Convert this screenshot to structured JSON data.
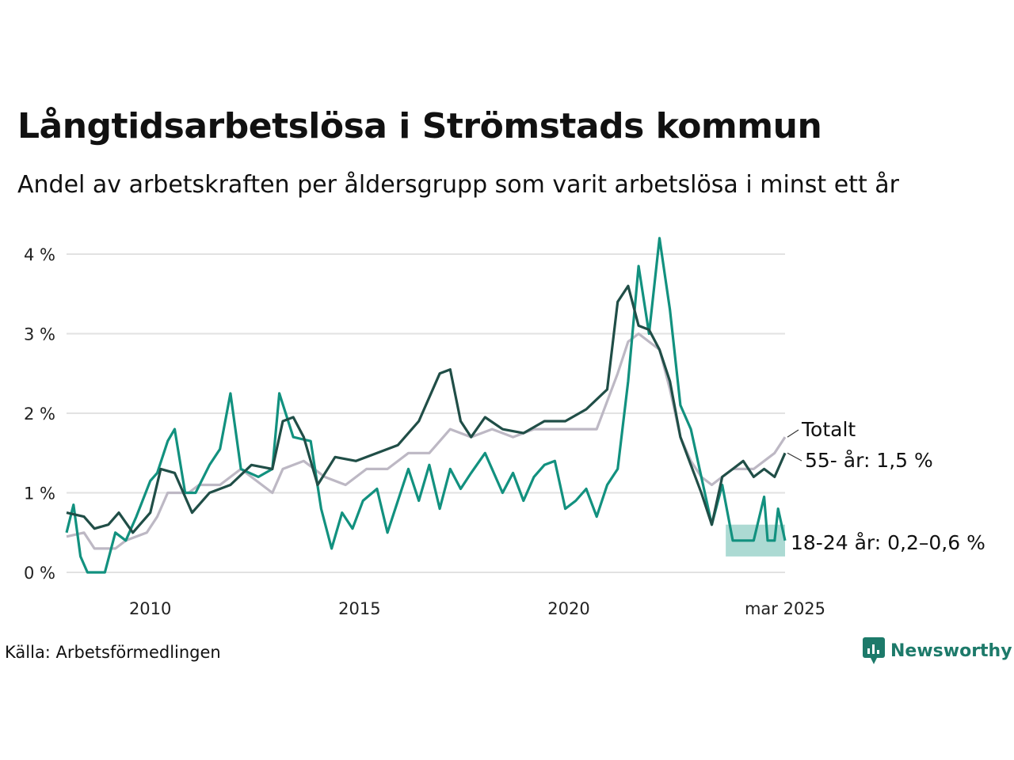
{
  "title": "Långtidsarbetslösa i Strömstads kommun",
  "subtitle": "Andel av arbetskraften per åldersgrupp som varit arbetslösa i minst ett år",
  "source": "Källa: Arbetsförmedlingen",
  "brand": "Newsworthy",
  "colors": {
    "total": "#bdb8c4",
    "older": "#204e47",
    "young": "#12917f",
    "band": "#9ed4cb",
    "grid": "#e2e2e2"
  },
  "chart_data": {
    "type": "line",
    "x_start": "2008-01",
    "x_end": "2025-03",
    "x_ticks": [
      {
        "date": "2010-01",
        "label": "2010"
      },
      {
        "date": "2015-01",
        "label": "2015"
      },
      {
        "date": "2020-01",
        "label": "2020"
      },
      {
        "date": "2025-03",
        "label": "mar 2025"
      }
    ],
    "y_ticks": [
      {
        "value": 0,
        "label": "0 %"
      },
      {
        "value": 1,
        "label": "1 %"
      },
      {
        "value": 2,
        "label": "2 %"
      },
      {
        "value": 3,
        "label": "3 %"
      },
      {
        "value": 4,
        "label": "4 %"
      }
    ],
    "ylim": [
      0,
      4
    ],
    "grid": true,
    "series": [
      {
        "key": "total",
        "name": "Totalt",
        "label": "Totalt",
        "color": "#bdb8c4",
        "points": [
          [
            "2008-01",
            0.45
          ],
          [
            "2008-06",
            0.5
          ],
          [
            "2008-09",
            0.3
          ],
          [
            "2009-03",
            0.3
          ],
          [
            "2009-06",
            0.4
          ],
          [
            "2009-12",
            0.5
          ],
          [
            "2010-03",
            0.7
          ],
          [
            "2010-06",
            1.0
          ],
          [
            "2010-12",
            1.0
          ],
          [
            "2011-03",
            1.1
          ],
          [
            "2011-09",
            1.1
          ],
          [
            "2012-03",
            1.3
          ],
          [
            "2012-09",
            1.1
          ],
          [
            "2012-12",
            1.0
          ],
          [
            "2013-03",
            1.3
          ],
          [
            "2013-09",
            1.4
          ],
          [
            "2014-03",
            1.2
          ],
          [
            "2014-09",
            1.1
          ],
          [
            "2015-03",
            1.3
          ],
          [
            "2015-09",
            1.3
          ],
          [
            "2016-03",
            1.5
          ],
          [
            "2016-09",
            1.5
          ],
          [
            "2017-03",
            1.8
          ],
          [
            "2017-09",
            1.7
          ],
          [
            "2018-03",
            1.8
          ],
          [
            "2018-09",
            1.7
          ],
          [
            "2019-03",
            1.8
          ],
          [
            "2019-09",
            1.8
          ],
          [
            "2020-03",
            1.8
          ],
          [
            "2020-09",
            1.8
          ],
          [
            "2021-03",
            2.5
          ],
          [
            "2021-06",
            2.9
          ],
          [
            "2021-09",
            3.0
          ],
          [
            "2021-12",
            2.9
          ],
          [
            "2022-03",
            2.8
          ],
          [
            "2022-06",
            2.3
          ],
          [
            "2022-09",
            1.7
          ],
          [
            "2022-12",
            1.4
          ],
          [
            "2023-03",
            1.2
          ],
          [
            "2023-06",
            1.1
          ],
          [
            "2023-09",
            1.2
          ],
          [
            "2023-12",
            1.3
          ],
          [
            "2024-06",
            1.3
          ],
          [
            "2024-12",
            1.5
          ],
          [
            "2025-03",
            1.7
          ]
        ]
      },
      {
        "key": "older",
        "name": "55- år",
        "label": "55- år: 1,5 %",
        "color": "#204e47",
        "points": [
          [
            "2008-01",
            0.75
          ],
          [
            "2008-06",
            0.7
          ],
          [
            "2008-09",
            0.55
          ],
          [
            "2009-01",
            0.6
          ],
          [
            "2009-04",
            0.75
          ],
          [
            "2009-08",
            0.5
          ],
          [
            "2010-01",
            0.75
          ],
          [
            "2010-04",
            1.3
          ],
          [
            "2010-08",
            1.25
          ],
          [
            "2011-01",
            0.75
          ],
          [
            "2011-06",
            1.0
          ],
          [
            "2011-12",
            1.1
          ],
          [
            "2012-06",
            1.35
          ],
          [
            "2012-12",
            1.3
          ],
          [
            "2013-03",
            1.9
          ],
          [
            "2013-06",
            1.95
          ],
          [
            "2013-09",
            1.7
          ],
          [
            "2014-01",
            1.1
          ],
          [
            "2014-06",
            1.45
          ],
          [
            "2014-12",
            1.4
          ],
          [
            "2015-06",
            1.5
          ],
          [
            "2015-12",
            1.6
          ],
          [
            "2016-06",
            1.9
          ],
          [
            "2016-12",
            2.5
          ],
          [
            "2017-03",
            2.55
          ],
          [
            "2017-06",
            1.9
          ],
          [
            "2017-09",
            1.7
          ],
          [
            "2018-01",
            1.95
          ],
          [
            "2018-06",
            1.8
          ],
          [
            "2018-12",
            1.75
          ],
          [
            "2019-06",
            1.9
          ],
          [
            "2019-12",
            1.9
          ],
          [
            "2020-06",
            2.05
          ],
          [
            "2020-12",
            2.3
          ],
          [
            "2021-03",
            3.4
          ],
          [
            "2021-06",
            3.6
          ],
          [
            "2021-09",
            3.1
          ],
          [
            "2021-12",
            3.05
          ],
          [
            "2022-03",
            2.8
          ],
          [
            "2022-06",
            2.4
          ],
          [
            "2022-09",
            1.7
          ],
          [
            "2022-12",
            1.35
          ],
          [
            "2023-03",
            1.0
          ],
          [
            "2023-06",
            0.6
          ],
          [
            "2023-09",
            1.2
          ],
          [
            "2023-12",
            1.3
          ],
          [
            "2024-03",
            1.4
          ],
          [
            "2024-06",
            1.2
          ],
          [
            "2024-09",
            1.3
          ],
          [
            "2024-12",
            1.2
          ],
          [
            "2025-03",
            1.5
          ]
        ]
      },
      {
        "key": "young",
        "name": "18-24 år",
        "label": "18-24 år: 0,2–0,6 %",
        "color": "#12917f",
        "points": [
          [
            "2008-01",
            0.5
          ],
          [
            "2008-03",
            0.85
          ],
          [
            "2008-05",
            0.2
          ],
          [
            "2008-07",
            0.0
          ],
          [
            "2008-12",
            0.0
          ],
          [
            "2009-03",
            0.5
          ],
          [
            "2009-06",
            0.4
          ],
          [
            "2009-09",
            0.7
          ],
          [
            "2010-01",
            1.15
          ],
          [
            "2010-03",
            1.25
          ],
          [
            "2010-06",
            1.65
          ],
          [
            "2010-08",
            1.8
          ],
          [
            "2010-11",
            1.0
          ],
          [
            "2011-02",
            1.0
          ],
          [
            "2011-06",
            1.35
          ],
          [
            "2011-09",
            1.55
          ],
          [
            "2011-12",
            2.25
          ],
          [
            "2012-03",
            1.3
          ],
          [
            "2012-08",
            1.2
          ],
          [
            "2012-12",
            1.3
          ],
          [
            "2013-02",
            2.25
          ],
          [
            "2013-06",
            1.7
          ],
          [
            "2013-11",
            1.65
          ],
          [
            "2014-02",
            0.8
          ],
          [
            "2014-05",
            0.3
          ],
          [
            "2014-08",
            0.75
          ],
          [
            "2014-11",
            0.55
          ],
          [
            "2015-02",
            0.9
          ],
          [
            "2015-06",
            1.05
          ],
          [
            "2015-09",
            0.5
          ],
          [
            "2015-12",
            0.9
          ],
          [
            "2016-03",
            1.3
          ],
          [
            "2016-06",
            0.9
          ],
          [
            "2016-09",
            1.35
          ],
          [
            "2016-12",
            0.8
          ],
          [
            "2017-03",
            1.3
          ],
          [
            "2017-06",
            1.05
          ],
          [
            "2017-09",
            1.25
          ],
          [
            "2018-01",
            1.5
          ],
          [
            "2018-06",
            1.0
          ],
          [
            "2018-09",
            1.25
          ],
          [
            "2018-12",
            0.9
          ],
          [
            "2019-03",
            1.2
          ],
          [
            "2019-06",
            1.35
          ],
          [
            "2019-09",
            1.4
          ],
          [
            "2019-12",
            0.8
          ],
          [
            "2020-03",
            0.9
          ],
          [
            "2020-06",
            1.05
          ],
          [
            "2020-09",
            0.7
          ],
          [
            "2020-12",
            1.1
          ],
          [
            "2021-03",
            1.3
          ],
          [
            "2021-06",
            2.4
          ],
          [
            "2021-09",
            3.85
          ],
          [
            "2021-12",
            3.0
          ],
          [
            "2022-03",
            4.2
          ],
          [
            "2022-06",
            3.3
          ],
          [
            "2022-09",
            2.1
          ],
          [
            "2022-12",
            1.8
          ],
          [
            "2023-03",
            1.2
          ],
          [
            "2023-06",
            0.6
          ],
          [
            "2023-09",
            1.1
          ],
          [
            "2023-12",
            0.4
          ],
          [
            "2024-03",
            0.4
          ],
          [
            "2024-06",
            0.4
          ],
          [
            "2024-09",
            0.95
          ],
          [
            "2024-10",
            0.4
          ],
          [
            "2024-12",
            0.4
          ],
          [
            "2025-01",
            0.8
          ],
          [
            "2025-03",
            0.4
          ]
        ]
      }
    ],
    "band": {
      "series": "18-24 år",
      "low": 0.2,
      "high": 0.6,
      "from": "2023-10",
      "to": "2025-03"
    }
  }
}
